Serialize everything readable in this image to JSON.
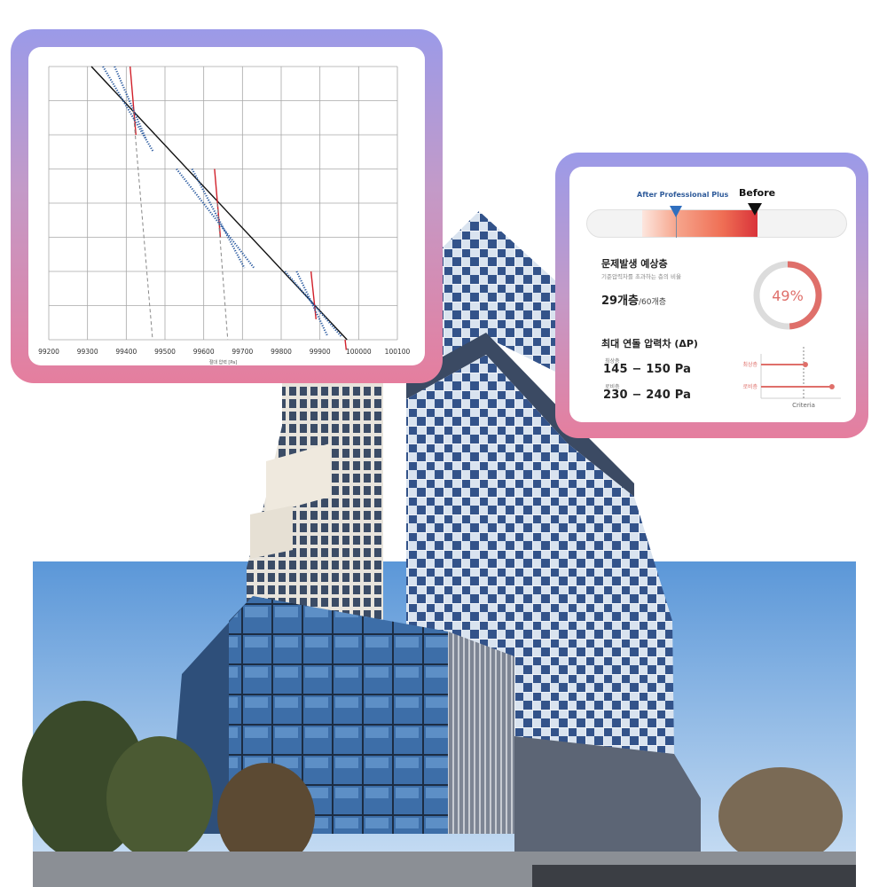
{
  "chart_data": {
    "type": "line",
    "title": "",
    "xlabel": "절대 압력 [Pa]",
    "ylabel": "",
    "xlim": [
      99200,
      100100
    ],
    "xticks": [
      99200,
      99300,
      99400,
      99500,
      99600,
      99700,
      99800,
      99900,
      100000,
      100100
    ],
    "y_gridlines": 8,
    "series": [
      {
        "style": "solid-black",
        "x": [
          99310,
          99970
        ],
        "y": [
          8,
          0
        ]
      },
      {
        "style": "solid-red",
        "x": [
          99410,
          99425
        ],
        "y": [
          8,
          6
        ]
      },
      {
        "style": "solid-red",
        "x": [
          99628,
          99643
        ],
        "y": [
          5,
          3
        ]
      },
      {
        "style": "solid-red",
        "x": [
          99877,
          99890
        ],
        "y": [
          2,
          0.6
        ]
      },
      {
        "style": "solid-red",
        "x": [
          99965,
          99968
        ],
        "y": [
          0,
          -0.3
        ]
      },
      {
        "style": "dashed-gray",
        "x": [
          99418,
          99468
        ],
        "y": [
          6.7,
          0
        ]
      },
      {
        "style": "dashed-gray",
        "x": [
          99635,
          99662
        ],
        "y": [
          4.0,
          0
        ]
      },
      {
        "style": "dotted-blue",
        "x": [
          99340,
          99470
        ],
        "y": [
          8,
          5.5
        ]
      },
      {
        "style": "dotted-blue",
        "x": [
          99370,
          99450
        ],
        "y": [
          8,
          5.9
        ]
      },
      {
        "style": "dotted-blue",
        "x": [
          99530,
          99730
        ],
        "y": [
          5,
          2.1
        ]
      },
      {
        "style": "dotted-blue",
        "x": [
          99570,
          99705
        ],
        "y": [
          5,
          2.1
        ]
      },
      {
        "style": "dotted-blue",
        "x": [
          99810,
          99955
        ],
        "y": [
          2,
          0.1
        ]
      },
      {
        "style": "dotted-blue",
        "x": [
          99840,
          99920
        ],
        "y": [
          2,
          0.1
        ]
      }
    ]
  },
  "report": {
    "after_label": "After Professional Plus",
    "before_label": "Before",
    "after_position": 0.34,
    "before_position": 0.64,
    "section1_title": "문제발생 예상층",
    "section1_sub": "기준압력차를 초과하는 층의 비율",
    "floors_value": "29개층",
    "floors_total": "/60개층",
    "percent_label": "49%",
    "percent_value": 49,
    "section2_title": "최대 연돌 압력차 (ΔP)",
    "top_floor_label": "최상층",
    "top_floor_value": "145 − 150 Pa",
    "bottom_floor_label": "로비층",
    "bottom_floor_value": "230 − 240 Pa",
    "criteria_label": "Criteria",
    "pa_rows": [
      {
        "label": "최상층",
        "value": 147
      },
      {
        "label": "로비층",
        "value": 235
      }
    ],
    "colors": {
      "accent_red": "#df6f6a",
      "blue": "#2f6fbf",
      "gauge_bg": "#dcdcdc"
    }
  }
}
